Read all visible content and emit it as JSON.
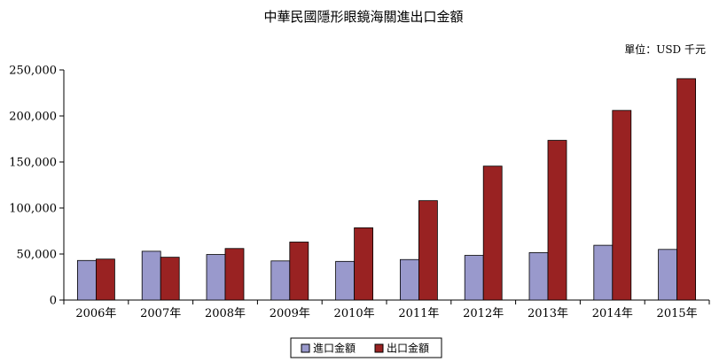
{
  "chart_data": {
    "type": "bar",
    "title": "中華民國隱形眼鏡海關進出口金額",
    "unit_label": "單位：USD 千元",
    "categories": [
      "2006年",
      "2007年",
      "2008年",
      "2009年",
      "2010年",
      "2011年",
      "2012年",
      "2013年",
      "2014年",
      "2015年"
    ],
    "series": [
      {
        "name": "進口金額",
        "color": "#9999cc",
        "values": [
          43000,
          53000,
          49500,
          42500,
          42000,
          44000,
          48500,
          51500,
          59500,
          55000
        ]
      },
      {
        "name": "出口金額",
        "color": "#992222",
        "values": [
          44500,
          46500,
          56000,
          63000,
          78500,
          108000,
          145500,
          173500,
          206000,
          240500
        ]
      }
    ],
    "yticks": [
      "0",
      "50,000",
      "100,000",
      "150,000",
      "200,000",
      "250,000"
    ],
    "ylim": [
      0,
      250000
    ],
    "legend_position": "bottom-center",
    "grid": false
  }
}
